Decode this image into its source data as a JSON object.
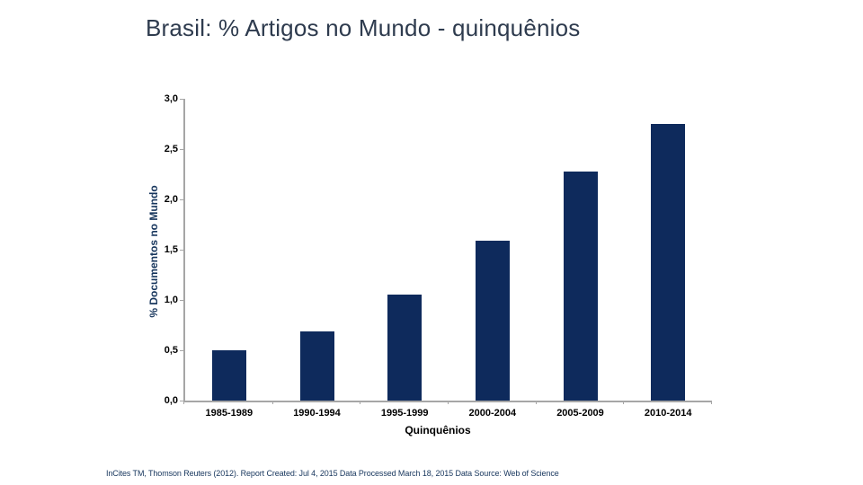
{
  "title": "Brasil: % Artigos no Mundo - quinquênios",
  "chart_data": {
    "type": "bar",
    "title": "Brasil: % Artigos no Mundo - quinquênios",
    "categories": [
      "1985-1989",
      "1990-1994",
      "1995-1999",
      "2000-2004",
      "2005-2009",
      "2010-2014"
    ],
    "values": [
      0.5,
      0.69,
      1.05,
      1.59,
      2.28,
      2.75
    ],
    "xlabel": "Quinquênios",
    "ylabel": "% Documentos no Mundo",
    "ylim": [
      0,
      3.0
    ],
    "ytick_step": 0.5,
    "ytick_labels": [
      "0,0",
      "0,5",
      "1,0",
      "1,5",
      "2,0",
      "2,5",
      "3,0"
    ],
    "grid": false,
    "legend": "none",
    "bar_color": "#0e2a5c",
    "axis_color": "#a6a6a6"
  },
  "footer": {
    "text": "InCites TM, Thomson Reuters (2012). Report Created:  Jul 4, 2015  Data Processed  March 18, 2015  Data Source: Web of Science"
  }
}
